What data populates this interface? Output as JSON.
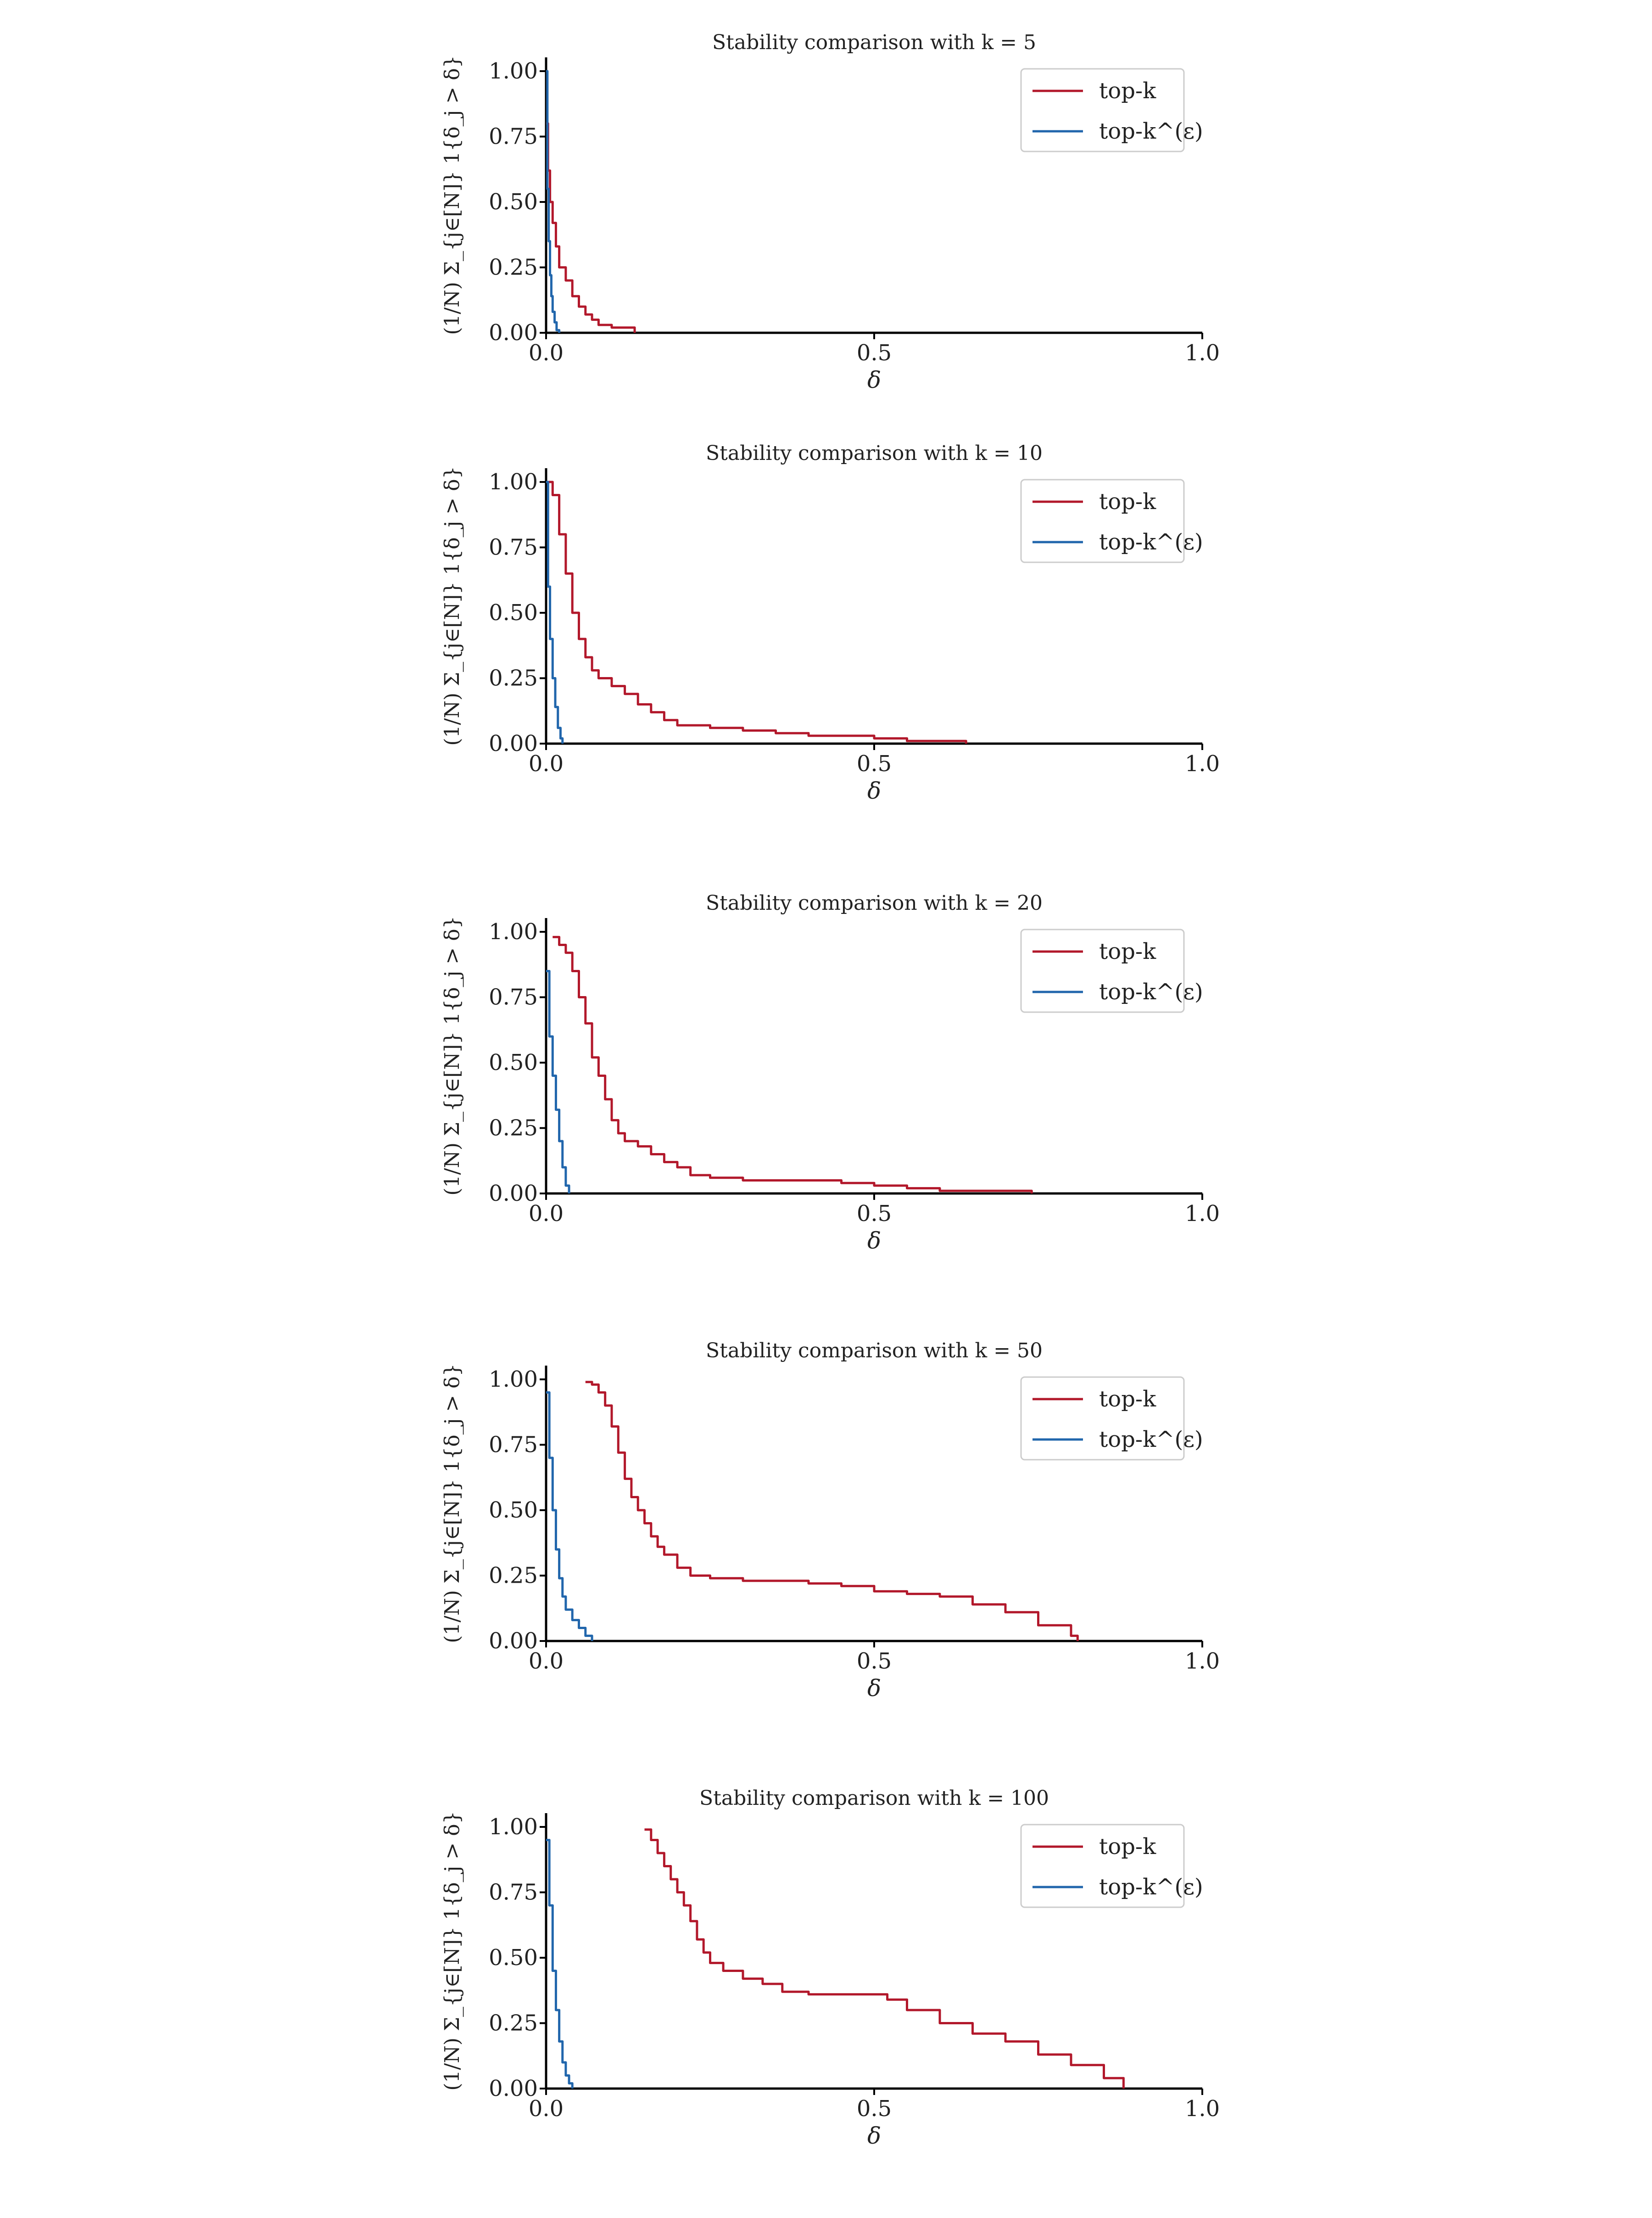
{
  "colors": {
    "top_k": "#b2182b",
    "top_k_eps": "#2166ac",
    "axis": "#000000"
  },
  "chart_data": [
    {
      "type": "line",
      "title": "Stability comparison with k = 5",
      "xlabel": "δ",
      "ylabel": "(1/N) Σ_{j∈[N]} 1{δ_j > δ}",
      "xlim": [
        0,
        1
      ],
      "ylim": [
        0,
        1.05
      ],
      "xticks": [
        "0.0",
        "0.5",
        "1.0"
      ],
      "yticks": [
        "0.00",
        "0.25",
        "0.50",
        "0.75",
        "1.00"
      ],
      "legend": "top-right",
      "grid": false,
      "series": [
        {
          "name": "top-k",
          "color": "#b2182b",
          "x": [
            0,
            0.003,
            0.006,
            0.01,
            0.015,
            0.02,
            0.03,
            0.04,
            0.05,
            0.06,
            0.07,
            0.08,
            0.1,
            0.12,
            0.135
          ],
          "y": [
            0.8,
            0.62,
            0.5,
            0.42,
            0.33,
            0.25,
            0.2,
            0.14,
            0.1,
            0.07,
            0.05,
            0.03,
            0.02,
            0.02,
            0
          ]
        },
        {
          "name": "top-k^(ε)",
          "color": "#2166ac",
          "x": [
            0,
            0.002,
            0.004,
            0.006,
            0.008,
            0.01,
            0.013,
            0.016,
            0.02
          ],
          "y": [
            1.0,
            0.55,
            0.35,
            0.22,
            0.14,
            0.08,
            0.04,
            0.01,
            0
          ]
        }
      ]
    },
    {
      "type": "line",
      "title": "Stability comparison with k = 10",
      "xlabel": "δ",
      "ylabel": "(1/N) Σ_{j∈[N]} 1{δ_j > δ}",
      "xlim": [
        0,
        1
      ],
      "ylim": [
        0,
        1.05
      ],
      "xticks": [
        "0.0",
        "0.5",
        "1.0"
      ],
      "yticks": [
        "0.00",
        "0.25",
        "0.50",
        "0.75",
        "1.00"
      ],
      "legend": "top-right",
      "grid": false,
      "series": [
        {
          "name": "top-k",
          "color": "#b2182b",
          "x": [
            0,
            0.01,
            0.02,
            0.03,
            0.04,
            0.05,
            0.06,
            0.07,
            0.08,
            0.1,
            0.12,
            0.14,
            0.16,
            0.18,
            0.2,
            0.25,
            0.3,
            0.35,
            0.4,
            0.45,
            0.5,
            0.55,
            0.6,
            0.64
          ],
          "y": [
            1.0,
            0.95,
            0.8,
            0.65,
            0.5,
            0.4,
            0.33,
            0.28,
            0.25,
            0.22,
            0.19,
            0.15,
            0.12,
            0.09,
            0.07,
            0.06,
            0.05,
            0.04,
            0.03,
            0.03,
            0.02,
            0.01,
            0.01,
            0
          ]
        },
        {
          "name": "top-k^(ε)",
          "color": "#2166ac",
          "x": [
            0,
            0.003,
            0.006,
            0.01,
            0.014,
            0.018,
            0.022,
            0.025
          ],
          "y": [
            1.0,
            0.6,
            0.4,
            0.25,
            0.14,
            0.06,
            0.02,
            0
          ]
        }
      ]
    },
    {
      "type": "line",
      "title": "Stability comparison with k = 20",
      "xlabel": "δ",
      "ylabel": "(1/N) Σ_{j∈[N]} 1{δ_j > δ}",
      "xlim": [
        0,
        1
      ],
      "ylim": [
        0,
        1.05
      ],
      "xticks": [
        "0.0",
        "0.5",
        "1.0"
      ],
      "yticks": [
        "0.00",
        "0.25",
        "0.50",
        "0.75",
        "1.00"
      ],
      "legend": "top-right",
      "grid": false,
      "series": [
        {
          "name": "top-k",
          "color": "#b2182b",
          "x": [
            0.01,
            0.02,
            0.03,
            0.04,
            0.05,
            0.06,
            0.07,
            0.08,
            0.09,
            0.1,
            0.11,
            0.12,
            0.14,
            0.16,
            0.18,
            0.2,
            0.22,
            0.25,
            0.3,
            0.35,
            0.4,
            0.45,
            0.5,
            0.55,
            0.6,
            0.65,
            0.7,
            0.74
          ],
          "y": [
            0.98,
            0.95,
            0.92,
            0.85,
            0.75,
            0.65,
            0.52,
            0.45,
            0.36,
            0.28,
            0.23,
            0.2,
            0.18,
            0.15,
            0.12,
            0.1,
            0.07,
            0.06,
            0.05,
            0.05,
            0.05,
            0.04,
            0.03,
            0.02,
            0.01,
            0.01,
            0.01,
            0
          ]
        },
        {
          "name": "top-k^(ε)",
          "color": "#2166ac",
          "x": [
            0,
            0.005,
            0.01,
            0.015,
            0.02,
            0.025,
            0.03,
            0.035
          ],
          "y": [
            0.85,
            0.6,
            0.45,
            0.32,
            0.2,
            0.1,
            0.03,
            0
          ]
        }
      ]
    },
    {
      "type": "line",
      "title": "Stability comparison with k = 50",
      "xlabel": "δ",
      "ylabel": "(1/N) Σ_{j∈[N]} 1{δ_j > δ}",
      "xlim": [
        0,
        1
      ],
      "ylim": [
        0,
        1.05
      ],
      "xticks": [
        "0.0",
        "0.5",
        "1.0"
      ],
      "yticks": [
        "0.00",
        "0.25",
        "0.50",
        "0.75",
        "1.00"
      ],
      "legend": "top-right",
      "grid": false,
      "series": [
        {
          "name": "top-k",
          "color": "#b2182b",
          "x": [
            0.06,
            0.07,
            0.08,
            0.09,
            0.1,
            0.11,
            0.12,
            0.13,
            0.14,
            0.15,
            0.16,
            0.17,
            0.18,
            0.2,
            0.22,
            0.25,
            0.3,
            0.35,
            0.4,
            0.45,
            0.5,
            0.55,
            0.6,
            0.65,
            0.7,
            0.75,
            0.8,
            0.81
          ],
          "y": [
            0.99,
            0.98,
            0.95,
            0.9,
            0.82,
            0.72,
            0.62,
            0.55,
            0.5,
            0.45,
            0.4,
            0.36,
            0.33,
            0.28,
            0.25,
            0.24,
            0.23,
            0.23,
            0.22,
            0.21,
            0.19,
            0.18,
            0.17,
            0.14,
            0.11,
            0.06,
            0.02,
            0
          ]
        },
        {
          "name": "top-k^(ε)",
          "color": "#2166ac",
          "x": [
            0,
            0.005,
            0.01,
            0.015,
            0.02,
            0.025,
            0.03,
            0.04,
            0.05,
            0.06,
            0.07
          ],
          "y": [
            0.95,
            0.7,
            0.5,
            0.35,
            0.24,
            0.17,
            0.12,
            0.08,
            0.05,
            0.02,
            0
          ]
        }
      ]
    },
    {
      "type": "line",
      "title": "Stability comparison with k = 100",
      "xlabel": "δ",
      "ylabel": "(1/N) Σ_{j∈[N]} 1{δ_j > δ}",
      "xlim": [
        0,
        1
      ],
      "ylim": [
        0,
        1.05
      ],
      "xticks": [
        "0.0",
        "0.5",
        "1.0"
      ],
      "yticks": [
        "0.00",
        "0.25",
        "0.50",
        "0.75",
        "1.00"
      ],
      "legend": "top-right",
      "grid": false,
      "series": [
        {
          "name": "top-k",
          "color": "#b2182b",
          "x": [
            0.15,
            0.16,
            0.17,
            0.18,
            0.19,
            0.2,
            0.21,
            0.22,
            0.23,
            0.24,
            0.25,
            0.27,
            0.3,
            0.33,
            0.36,
            0.4,
            0.45,
            0.5,
            0.52,
            0.55,
            0.6,
            0.65,
            0.7,
            0.75,
            0.8,
            0.85,
            0.88
          ],
          "y": [
            0.99,
            0.95,
            0.9,
            0.85,
            0.8,
            0.75,
            0.7,
            0.64,
            0.57,
            0.52,
            0.48,
            0.45,
            0.42,
            0.4,
            0.37,
            0.36,
            0.36,
            0.36,
            0.34,
            0.3,
            0.25,
            0.21,
            0.18,
            0.13,
            0.09,
            0.04,
            0
          ]
        },
        {
          "name": "top-k^(ε)",
          "color": "#2166ac",
          "x": [
            0,
            0.005,
            0.01,
            0.015,
            0.02,
            0.025,
            0.03,
            0.035,
            0.04
          ],
          "y": [
            0.95,
            0.7,
            0.45,
            0.3,
            0.18,
            0.1,
            0.05,
            0.02,
            0
          ]
        }
      ]
    }
  ]
}
